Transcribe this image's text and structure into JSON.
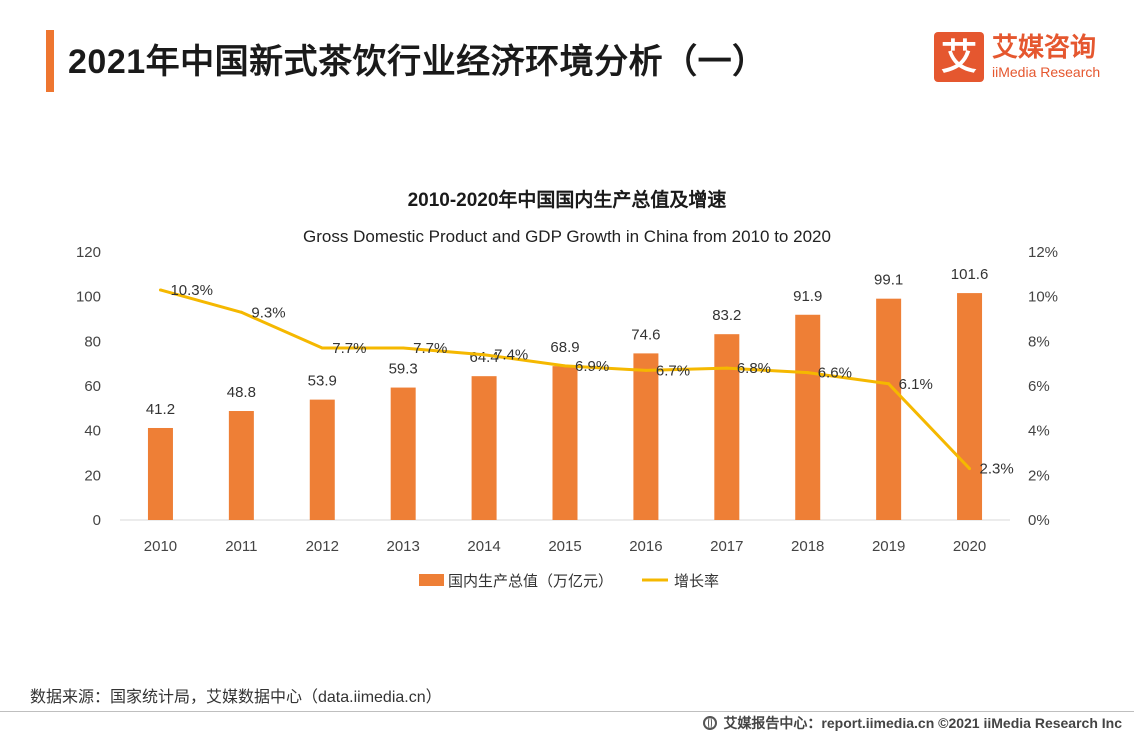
{
  "header": {
    "title": "2021年中国新式茶饮行业经济环境分析（一）",
    "logo_mark": "艾",
    "logo_cn": "艾媒咨询",
    "logo_en": "iiMedia Research"
  },
  "chart_data": {
    "type": "bar",
    "title": "2010-2020年中国国内生产总值及增速",
    "subtitle": "Gross Domestic Product and GDP Growth in China from 2010 to 2020",
    "categories": [
      "2010",
      "2011",
      "2012",
      "2013",
      "2014",
      "2015",
      "2016",
      "2017",
      "2018",
      "2019",
      "2020"
    ],
    "series": [
      {
        "name": "国内生产总值（万亿元）",
        "type": "bar",
        "axis": "left",
        "color": "#ee7f36",
        "values": [
          41.2,
          48.8,
          53.9,
          59.3,
          64.4,
          68.9,
          74.6,
          83.2,
          91.9,
          99.1,
          101.6
        ],
        "labels": [
          "41.2",
          "48.8",
          "53.9",
          "59.3",
          "64.4",
          "68.9",
          "74.6",
          "83.2",
          "91.9",
          "99.1",
          "101.6"
        ]
      },
      {
        "name": "增长率",
        "type": "line",
        "axis": "right",
        "color": "#f5b800",
        "values": [
          10.3,
          9.3,
          7.7,
          7.7,
          7.4,
          6.9,
          6.7,
          6.8,
          6.6,
          6.1,
          2.3
        ],
        "labels": [
          "10.3%",
          "9.3%",
          "7.7%",
          "7.7%",
          "7.4%",
          "6.9%",
          "6.7%",
          "6.8%",
          "6.6%",
          "6.1%",
          "2.3%"
        ]
      }
    ],
    "y_left": {
      "ylim": [
        0,
        120
      ],
      "ticks": [
        "0",
        "20",
        "40",
        "60",
        "80",
        "100",
        "120"
      ]
    },
    "y_right": {
      "ylim": [
        0,
        12
      ],
      "ticks": [
        "0%",
        "2%",
        "4%",
        "6%",
        "8%",
        "10%",
        "12%"
      ]
    },
    "grid": false,
    "legend": "bottom-center"
  },
  "footer": {
    "source": "数据来源：国家统计局，艾媒数据中心（data.iimedia.cn）",
    "credit": "艾媒报告中心：report.iimedia.cn  ©2021  iiMedia Research  Inc"
  }
}
